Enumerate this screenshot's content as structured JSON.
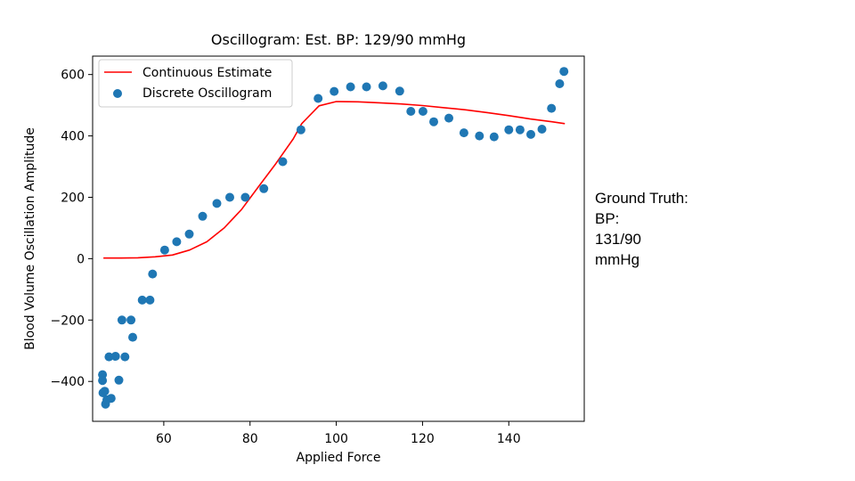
{
  "chart_data": {
    "type": "scatter",
    "title": "Oscillogram: Est. BP: 129/90 mmHg",
    "xlabel": "Applied Force",
    "ylabel": "Blood Volume Oscillation Amplitude",
    "xlim": [
      43.5,
      157.5
    ],
    "ylim": [
      -530,
      660
    ],
    "xticks": [
      60,
      80,
      100,
      120,
      140
    ],
    "yticks": [
      -400,
      -200,
      0,
      200,
      400,
      600
    ],
    "grid": false,
    "legend": {
      "position": "top-left",
      "entries": [
        "Continuous Estimate",
        "Discrete Oscillogram"
      ]
    },
    "series": [
      {
        "name": "Continuous Estimate",
        "kind": "line",
        "color": "#ff0000",
        "x": [
          46,
          50,
          54,
          58,
          62,
          66,
          70,
          74,
          78,
          82,
          86,
          90,
          92,
          96,
          100,
          105,
          110,
          115,
          120,
          125,
          130,
          135,
          140,
          145,
          150,
          153
        ],
        "y": [
          2,
          2,
          3,
          6,
          12,
          28,
          55,
          100,
          160,
          235,
          310,
          390,
          440,
          498,
          512,
          511,
          508,
          504,
          499,
          492,
          485,
          476,
          466,
          455,
          446,
          440
        ]
      },
      {
        "name": "Discrete Oscillogram",
        "kind": "scatter",
        "color": "#1f77b4",
        "x": [
          45.8,
          45.8,
          45.9,
          46.3,
          46.5,
          46.8,
          47.3,
          47.8,
          48.8,
          49.6,
          50.3,
          51.0,
          52.4,
          52.8,
          55.0,
          56.8,
          57.4,
          60.2,
          63.0,
          65.9,
          69.0,
          72.3,
          75.3,
          78.9,
          83.2,
          87.6,
          91.8,
          95.8,
          99.5,
          103.3,
          107.0,
          110.8,
          114.7,
          117.3,
          120.1,
          122.6,
          126.1,
          129.6,
          133.2,
          136.6,
          140.0,
          142.6,
          145.1,
          147.7,
          149.9,
          151.8,
          152.8
        ],
        "y": [
          -378,
          -397,
          -437,
          -432,
          -474,
          -460,
          -320,
          -455,
          -318,
          -396,
          -200,
          -320,
          -200,
          -256,
          -135,
          -135,
          -50,
          28,
          55,
          80,
          138,
          180,
          200,
          200,
          228,
          316,
          420,
          522,
          545,
          560,
          560,
          563,
          546,
          480,
          480,
          446,
          458,
          410,
          400,
          397,
          420,
          420,
          405,
          422,
          490,
          570,
          610
        ]
      }
    ]
  },
  "side_note": {
    "lines": [
      "Ground Truth:",
      "BP:",
      "131/90",
      "mmHg"
    ]
  }
}
